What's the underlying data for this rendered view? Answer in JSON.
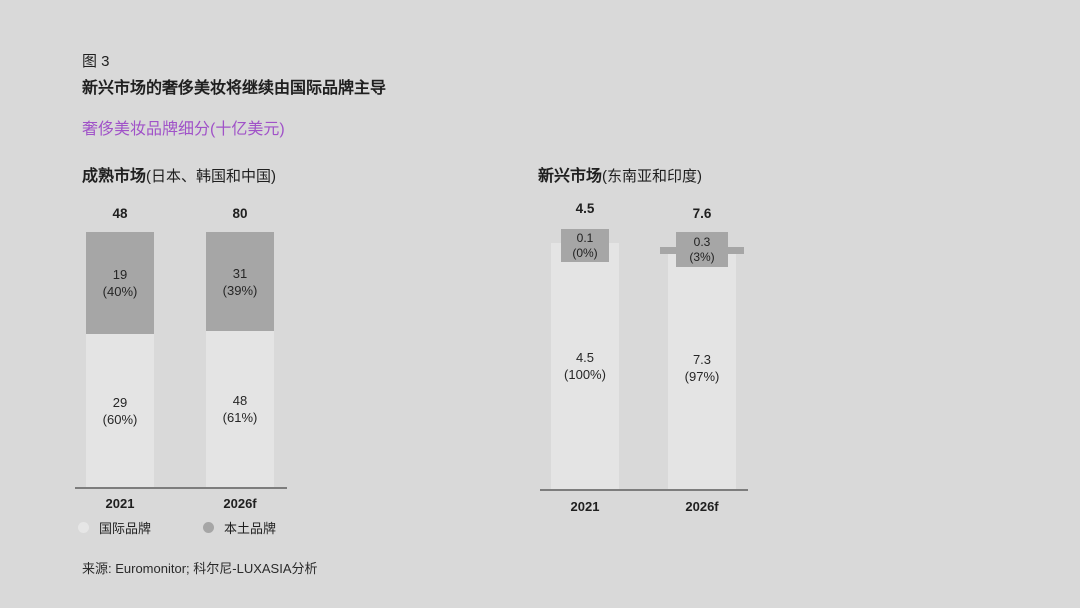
{
  "figure": {
    "label": "图 3",
    "title": "新兴市场的奢侈美妆将继续由国际品牌主导",
    "subtitle_main": "奢侈美妆品牌细分",
    "subtitle_unit": "(十亿美元)"
  },
  "colors": {
    "background": "#d9d9d9",
    "international_segment": "#e4e4e4",
    "local_segment": "#a6a6a6",
    "subtitle_purple": "#a052c8",
    "axis": "#7d7d7d",
    "text": "#1f1f1f"
  },
  "legend": [
    {
      "label": "国际品牌",
      "color": "#e4e4e4"
    },
    {
      "label": "本土品牌",
      "color": "#a6a6a6"
    }
  ],
  "source": "来源: Euromonitor; 科尔尼-LUXASIA分析",
  "chart_data": [
    {
      "type": "bar",
      "stacked": true,
      "title_bold": "成熟市场",
      "title_note": "(日本、韩国和中国)",
      "unit": "十亿美元",
      "categories": [
        "2021",
        "2026f"
      ],
      "totals": [
        48,
        80
      ],
      "series": [
        {
          "name": "国际品牌",
          "values": [
            29,
            48
          ],
          "pct": [
            60,
            61
          ]
        },
        {
          "name": "本土品牌",
          "values": [
            19,
            31
          ],
          "pct": [
            40,
            39
          ]
        }
      ],
      "bars": [
        {
          "category": "2021",
          "total": "48",
          "local": {
            "value": "19",
            "pct_label": "(40%)",
            "pct": 40
          },
          "intl": {
            "value": "29",
            "pct_label": "(60%)",
            "pct": 60
          }
        },
        {
          "category": "2026f",
          "total": "80",
          "local": {
            "value": "31",
            "pct_label": "(39%)",
            "pct": 39
          },
          "intl": {
            "value": "48",
            "pct_label": "(61%)",
            "pct": 61
          }
        }
      ]
    },
    {
      "type": "bar",
      "stacked": true,
      "title_bold": "新兴市场",
      "title_note": "(东南亚和印度)",
      "unit": "十亿美元",
      "categories": [
        "2021",
        "2026f"
      ],
      "totals": [
        4.5,
        7.6
      ],
      "series": [
        {
          "name": "国际品牌",
          "values": [
            4.5,
            7.3
          ],
          "pct": [
            100,
            97
          ]
        },
        {
          "name": "本土品牌",
          "values": [
            0.1,
            0.3
          ],
          "pct": [
            0,
            3
          ]
        }
      ],
      "bars": [
        {
          "category": "2021",
          "total": "4.5",
          "local": {
            "value": "0.1",
            "pct_label": "(0%)",
            "pct": 0
          },
          "intl": {
            "value": "4.5",
            "pct_label": "(100%)",
            "pct": 100
          }
        },
        {
          "category": "2026f",
          "total": "7.6",
          "local": {
            "value": "0.3",
            "pct_label": "(3%)",
            "pct": 3
          },
          "intl": {
            "value": "7.3",
            "pct_label": "(97%)",
            "pct": 97
          }
        }
      ]
    }
  ]
}
